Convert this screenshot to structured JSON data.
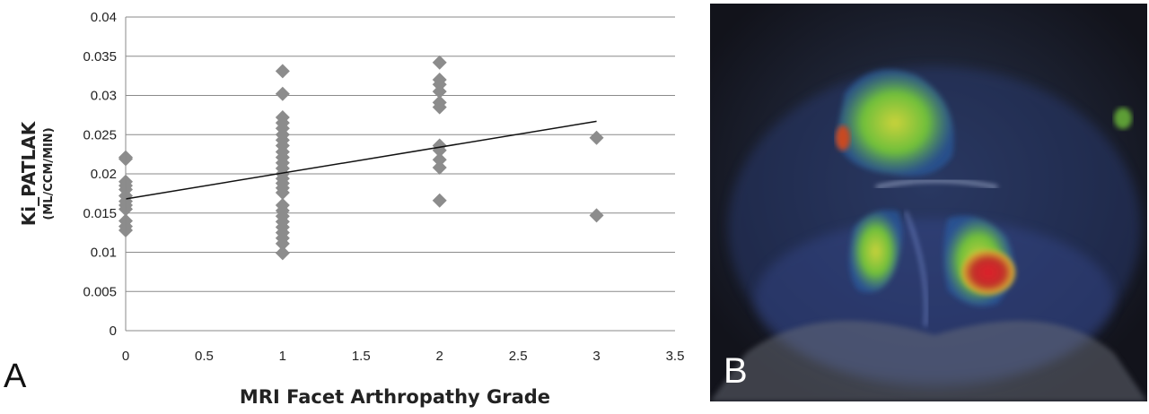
{
  "chart_data": {
    "type": "scatter",
    "xlabel": "MRI Facet Arthropathy Grade",
    "ylabel": "Ki_PATLAK",
    "ylabel_unit": "(ML/CCM/MIN)",
    "xlim": [
      0,
      3.5
    ],
    "ylim": [
      0,
      0.04
    ],
    "x_ticks": [
      "0",
      "0.5",
      "1",
      "1.5",
      "2",
      "2.5",
      "3",
      "3.5"
    ],
    "y_ticks": [
      "0",
      "0.005",
      "0.01",
      "0.015",
      "0.02",
      "0.025",
      "0.03",
      "0.035",
      "0.04"
    ],
    "grid": true,
    "marker_color": "#8c8c8c",
    "trendline": {
      "x": [
        0,
        3
      ],
      "y": [
        0.0168,
        0.0267
      ]
    },
    "points": [
      [
        0,
        0.0221
      ],
      [
        0,
        0.0219
      ],
      [
        0,
        0.019
      ],
      [
        0,
        0.0185
      ],
      [
        0,
        0.018
      ],
      [
        0,
        0.0172
      ],
      [
        0,
        0.0165
      ],
      [
        0,
        0.016
      ],
      [
        0,
        0.0155
      ],
      [
        0,
        0.014
      ],
      [
        0,
        0.0133
      ],
      [
        0,
        0.0128
      ],
      [
        1,
        0.0331
      ],
      [
        1,
        0.0302
      ],
      [
        1,
        0.0272
      ],
      [
        1,
        0.0265
      ],
      [
        1,
        0.0258
      ],
      [
        1,
        0.025
      ],
      [
        1,
        0.0243
      ],
      [
        1,
        0.0236
      ],
      [
        1,
        0.0228
      ],
      [
        1,
        0.0221
      ],
      [
        1,
        0.0214
      ],
      [
        1,
        0.0207
      ],
      [
        1,
        0.02
      ],
      [
        1,
        0.0194
      ],
      [
        1,
        0.0188
      ],
      [
        1,
        0.0182
      ],
      [
        1,
        0.0176
      ],
      [
        1,
        0.016
      ],
      [
        1,
        0.0153
      ],
      [
        1,
        0.0146
      ],
      [
        1,
        0.0139
      ],
      [
        1,
        0.0132
      ],
      [
        1,
        0.0125
      ],
      [
        1,
        0.0118
      ],
      [
        1,
        0.0111
      ],
      [
        1,
        0.0099
      ],
      [
        2,
        0.0342
      ],
      [
        2,
        0.032
      ],
      [
        2,
        0.0314
      ],
      [
        2,
        0.0305
      ],
      [
        2,
        0.0291
      ],
      [
        2,
        0.0285
      ],
      [
        2,
        0.0236
      ],
      [
        2,
        0.023
      ],
      [
        2,
        0.0218
      ],
      [
        2,
        0.0208
      ],
      [
        2,
        0.0166
      ],
      [
        3,
        0.0246
      ],
      [
        3,
        0.0147
      ]
    ]
  },
  "panels": {
    "a": "A",
    "b": "B"
  }
}
